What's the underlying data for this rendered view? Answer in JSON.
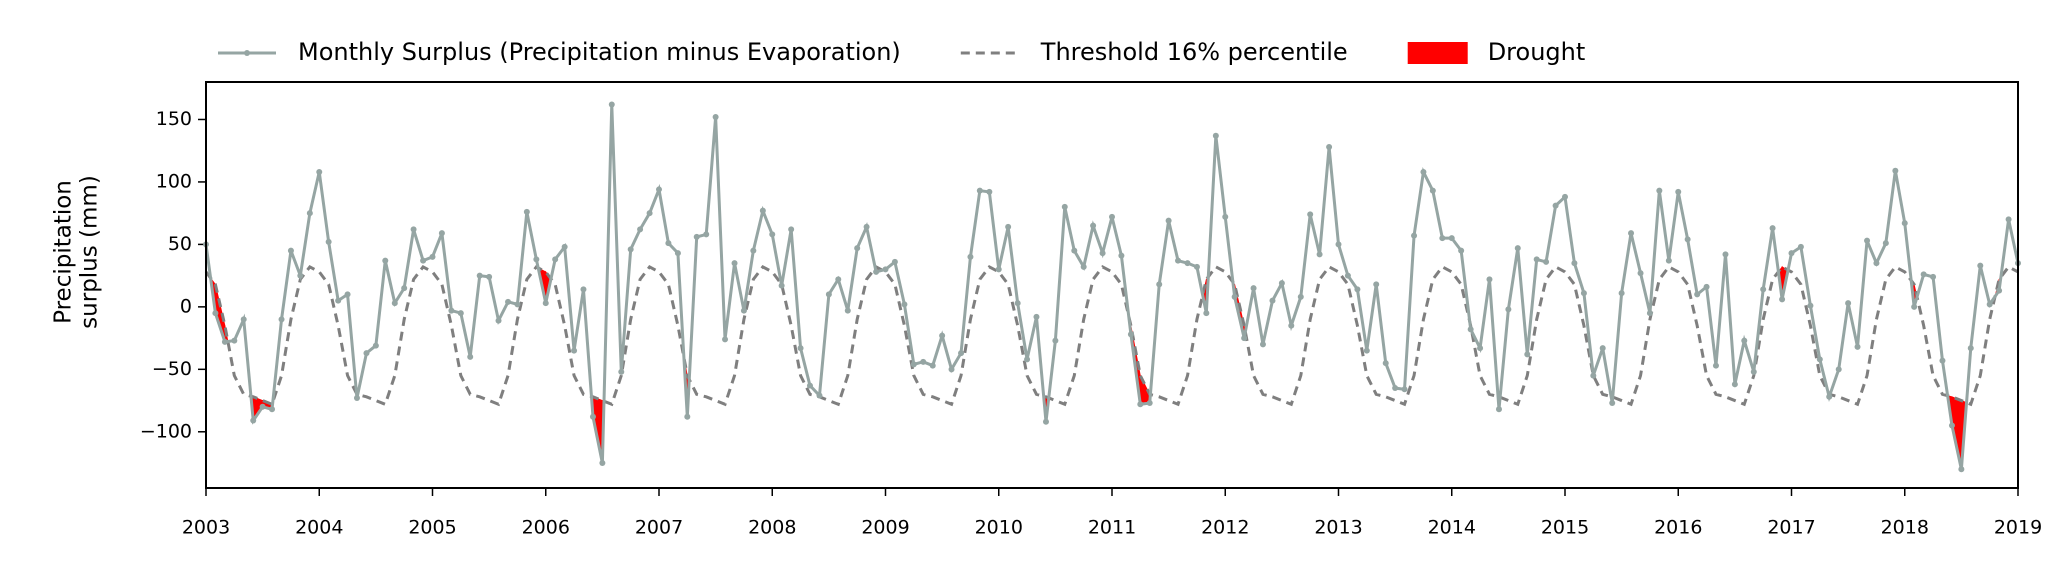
{
  "chart_data": {
    "type": "line",
    "ylabel": [
      "Precipitation",
      "surplus (mm)"
    ],
    "legend": "top",
    "xlim": [
      2003,
      2019
    ],
    "xticks": [
      2003,
      2004,
      2005,
      2006,
      2007,
      2008,
      2009,
      2010,
      2011,
      2012,
      2013,
      2014,
      2015,
      2016,
      2017,
      2018,
      2019
    ],
    "ylim": [
      -145,
      180
    ],
    "yticks": [
      {
        "value": -100,
        "label": "−100"
      },
      {
        "value": -50,
        "label": "−50"
      },
      0,
      50,
      100,
      150
    ],
    "x": [
      2003,
      2003.083,
      2003.167,
      2003.25,
      2003.333,
      2003.417,
      2003.5,
      2003.583,
      2003.667,
      2003.75,
      2003.833,
      2003.917,
      2004,
      2004.083,
      2004.167,
      2004.25,
      2004.333,
      2004.417,
      2004.5,
      2004.583,
      2004.667,
      2004.75,
      2004.833,
      2004.917,
      2005,
      2005.083,
      2005.167,
      2005.25,
      2005.333,
      2005.417,
      2005.5,
      2005.583,
      2005.667,
      2005.75,
      2005.833,
      2005.917,
      2006,
      2006.083,
      2006.167,
      2006.25,
      2006.333,
      2006.417,
      2006.5,
      2006.583,
      2006.667,
      2006.75,
      2006.833,
      2006.917,
      2007,
      2007.083,
      2007.167,
      2007.25,
      2007.333,
      2007.417,
      2007.5,
      2007.583,
      2007.667,
      2007.75,
      2007.833,
      2007.917,
      2008,
      2008.083,
      2008.167,
      2008.25,
      2008.333,
      2008.417,
      2008.5,
      2008.583,
      2008.667,
      2008.75,
      2008.833,
      2008.917,
      2009,
      2009.083,
      2009.167,
      2009.25,
      2009.333,
      2009.417,
      2009.5,
      2009.583,
      2009.667,
      2009.75,
      2009.833,
      2009.917,
      2010,
      2010.083,
      2010.167,
      2010.25,
      2010.333,
      2010.417,
      2010.5,
      2010.583,
      2010.667,
      2010.75,
      2010.833,
      2010.917,
      2011,
      2011.083,
      2011.167,
      2011.25,
      2011.333,
      2011.417,
      2011.5,
      2011.583,
      2011.667,
      2011.75,
      2011.833,
      2011.917,
      2012,
      2012.083,
      2012.167,
      2012.25,
      2012.333,
      2012.417,
      2012.5,
      2012.583,
      2012.667,
      2012.75,
      2012.833,
      2012.917,
      2013,
      2013.083,
      2013.167,
      2013.25,
      2013.333,
      2013.417,
      2013.5,
      2013.583,
      2013.667,
      2013.75,
      2013.833,
      2013.917,
      2014,
      2014.083,
      2014.167,
      2014.25,
      2014.333,
      2014.417,
      2014.5,
      2014.583,
      2014.667,
      2014.75,
      2014.833,
      2014.917,
      2015,
      2015.083,
      2015.167,
      2015.25,
      2015.333,
      2015.417,
      2015.5,
      2015.583,
      2015.667,
      2015.75,
      2015.833,
      2015.917,
      2016,
      2016.083,
      2016.167,
      2016.25,
      2016.333,
      2016.417,
      2016.5,
      2016.583,
      2016.667,
      2016.75,
      2016.833,
      2016.917,
      2017,
      2017.083,
      2017.167,
      2017.25,
      2017.333,
      2017.417,
      2017.5,
      2017.583,
      2017.667,
      2017.75,
      2017.833,
      2017.917,
      2018,
      2018.083,
      2018.167,
      2018.25,
      2018.333,
      2018.417,
      2018.5,
      2018.583,
      2018.667,
      2018.75,
      2018.833,
      2018.917,
      2019
    ],
    "series": [
      {
        "name": "Monthly Surplus (Precipitation minus Evaporation)",
        "color": "#95a5a3",
        "marker": true,
        "values": [
          50,
          -5,
          -28,
          -27,
          -10,
          -91,
          -80,
          -82,
          -10,
          45,
          25,
          75,
          108,
          52,
          5,
          10,
          -73,
          -37,
          -31,
          37,
          3,
          15,
          62,
          37,
          40,
          59,
          -3,
          -5,
          -40,
          25,
          24,
          -11,
          4,
          2,
          76,
          38,
          3,
          38,
          48,
          -35,
          14,
          -88,
          -125,
          162,
          -52,
          46,
          62,
          75,
          94,
          51,
          43,
          -88,
          56,
          58,
          152,
          -26,
          35,
          -3,
          45,
          77,
          58,
          17,
          62,
          -33,
          -63,
          -71,
          10,
          22,
          -3,
          47,
          64,
          28,
          30,
          36,
          2,
          -46,
          -44,
          -47,
          -23,
          -50,
          -37,
          40,
          93,
          92,
          30,
          64,
          3,
          -42,
          -8,
          -92,
          -27,
          80,
          45,
          32,
          65,
          43,
          72,
          41,
          -22,
          -78,
          -77,
          18,
          69,
          37,
          35,
          32,
          -5,
          137,
          72,
          8,
          -25,
          15,
          -30,
          5,
          19,
          -15,
          8,
          74,
          42,
          128,
          50,
          25,
          14,
          -35,
          18,
          -45,
          -65,
          -66,
          57,
          108,
          93,
          55,
          55,
          45,
          -18,
          -33,
          22,
          -82,
          -2,
          47,
          -38,
          38,
          36,
          81,
          88,
          35,
          11,
          -55,
          -33,
          -77,
          11,
          59,
          27,
          -5,
          93,
          37,
          92,
          54,
          10,
          16,
          -47,
          42,
          -62,
          -27,
          -52,
          14,
          63,
          6,
          43,
          48,
          1,
          -42,
          -72,
          -50,
          3,
          -32,
          53,
          35,
          51,
          109,
          67,
          0,
          26,
          24,
          -43,
          -95,
          -130,
          -33,
          33,
          2,
          13,
          70,
          35
        ]
      },
      {
        "name": "Threshold 16% percentile",
        "color": "#7f7f7f",
        "dashed": true,
        "values": [
          28,
          18,
          -15,
          -55,
          -70,
          -72,
          -75,
          -78,
          -55,
          -10,
          22,
          32,
          28,
          18,
          -15,
          -55,
          -70,
          -72,
          -75,
          -78,
          -55,
          -10,
          22,
          32,
          28,
          18,
          -15,
          -55,
          -70,
          -72,
          -75,
          -78,
          -55,
          -10,
          22,
          32,
          28,
          18,
          -15,
          -55,
          -70,
          -72,
          -75,
          -78,
          -55,
          -10,
          22,
          32,
          28,
          18,
          -15,
          -55,
          -70,
          -72,
          -75,
          -78,
          -55,
          -10,
          22,
          32,
          28,
          18,
          -15,
          -55,
          -70,
          -72,
          -75,
          -78,
          -55,
          -10,
          22,
          32,
          28,
          18,
          -15,
          -55,
          -70,
          -72,
          -75,
          -78,
          -55,
          -10,
          22,
          32,
          28,
          18,
          -15,
          -55,
          -70,
          -72,
          -75,
          -78,
          -55,
          -10,
          22,
          32,
          28,
          18,
          -15,
          -55,
          -70,
          -72,
          -75,
          -78,
          -55,
          -10,
          22,
          32,
          28,
          18,
          -15,
          -55,
          -70,
          -72,
          -75,
          -78,
          -55,
          -10,
          22,
          32,
          28,
          18,
          -15,
          -55,
          -70,
          -72,
          -75,
          -78,
          -55,
          -10,
          22,
          32,
          28,
          18,
          -15,
          -55,
          -70,
          -72,
          -75,
          -78,
          -55,
          -10,
          22,
          32,
          28,
          18,
          -15,
          -55,
          -70,
          -72,
          -75,
          -78,
          -55,
          -10,
          22,
          32,
          28,
          18,
          -15,
          -55,
          -70,
          -72,
          -75,
          -78,
          -55,
          -10,
          22,
          32,
          28,
          18,
          -15,
          -55,
          -70,
          -72,
          -75,
          -78,
          -55,
          -10,
          22,
          32,
          28,
          18,
          -15,
          -55,
          -70,
          -72,
          -75,
          -78,
          -55,
          -10,
          22,
          32,
          28
        ]
      }
    ],
    "fill_below": {
      "name": "Drought",
      "color": "#ff0000"
    }
  }
}
